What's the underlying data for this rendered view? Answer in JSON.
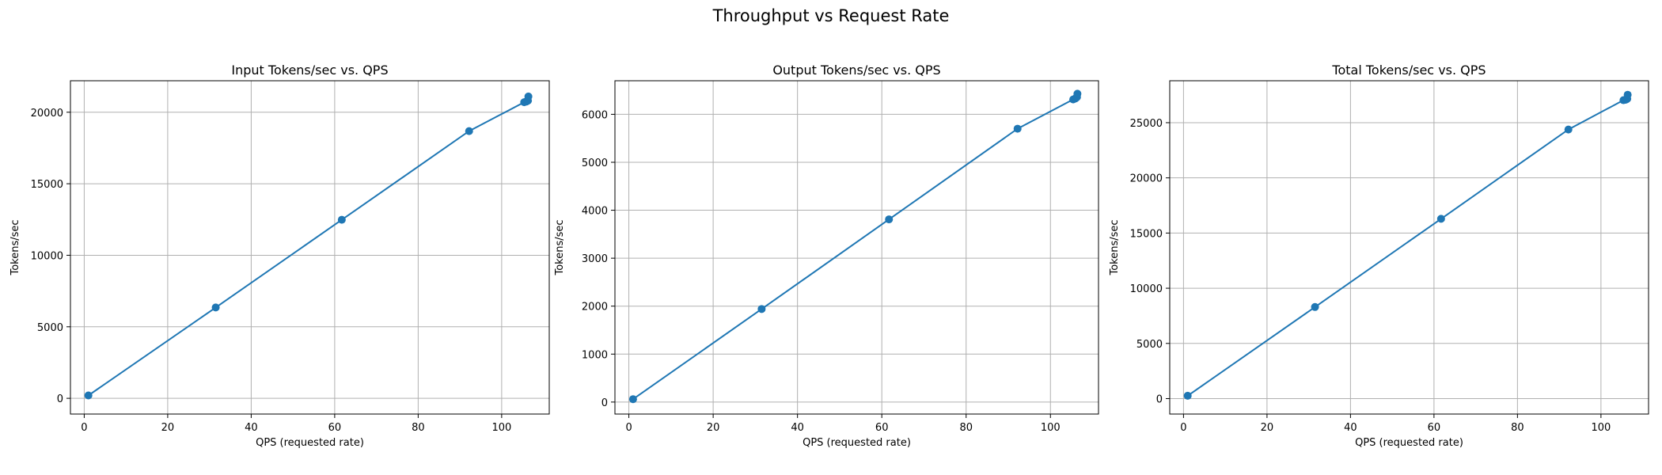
{
  "figure": {
    "title": "Throughput vs Request Rate"
  },
  "colors": {
    "series": "#1f77b4",
    "grid": "#b0b0b0",
    "axes": "#000000",
    "background": "#ffffff"
  },
  "chart_data": [
    {
      "type": "line",
      "title": "Input Tokens/sec vs. QPS",
      "xlabel": "QPS (requested rate)",
      "ylabel": "Tokens/sec",
      "xlim": [
        -3.3,
        111.4
      ],
      "ylim": [
        -1100,
        22200
      ],
      "xticks": [
        0,
        20,
        40,
        60,
        80,
        100
      ],
      "yticks": [
        0,
        5000,
        10000,
        15000,
        20000
      ],
      "grid": true,
      "markers": true,
      "x": [
        1.0,
        31.5,
        61.7,
        92.2,
        105.4,
        105.9,
        106.1,
        106.3,
        106.4
      ],
      "y": [
        200,
        6350,
        12480,
        18680,
        20700,
        20750,
        20780,
        20810,
        21100
      ]
    },
    {
      "type": "line",
      "title": "Output Tokens/sec vs. QPS",
      "xlabel": "QPS (requested rate)",
      "ylabel": "Tokens/sec",
      "xlim": [
        -3.3,
        111.4
      ],
      "ylim": [
        -250,
        6700
      ],
      "xticks": [
        0,
        20,
        40,
        60,
        80,
        100
      ],
      "yticks": [
        0,
        1000,
        2000,
        3000,
        4000,
        5000,
        6000
      ],
      "grid": true,
      "markers": true,
      "x": [
        1.0,
        31.5,
        61.7,
        92.2,
        105.4,
        105.9,
        106.1,
        106.3,
        106.4
      ],
      "y": [
        60,
        1940,
        3810,
        5700,
        6310,
        6330,
        6345,
        6360,
        6430
      ]
    },
    {
      "type": "line",
      "title": "Total Tokens/sec vs. QPS",
      "xlabel": "QPS (requested rate)",
      "ylabel": "Tokens/sec",
      "xlim": [
        -3.3,
        111.4
      ],
      "ylim": [
        -1400,
        28800
      ],
      "xticks": [
        0,
        20,
        40,
        60,
        80,
        100
      ],
      "yticks": [
        0,
        5000,
        10000,
        15000,
        20000,
        25000
      ],
      "grid": true,
      "markers": true,
      "x": [
        1.0,
        31.5,
        61.7,
        92.2,
        105.4,
        105.9,
        106.1,
        106.3,
        106.4
      ],
      "y": [
        260,
        8300,
        16290,
        24380,
        27040,
        27080,
        27120,
        27170,
        27530
      ]
    }
  ]
}
